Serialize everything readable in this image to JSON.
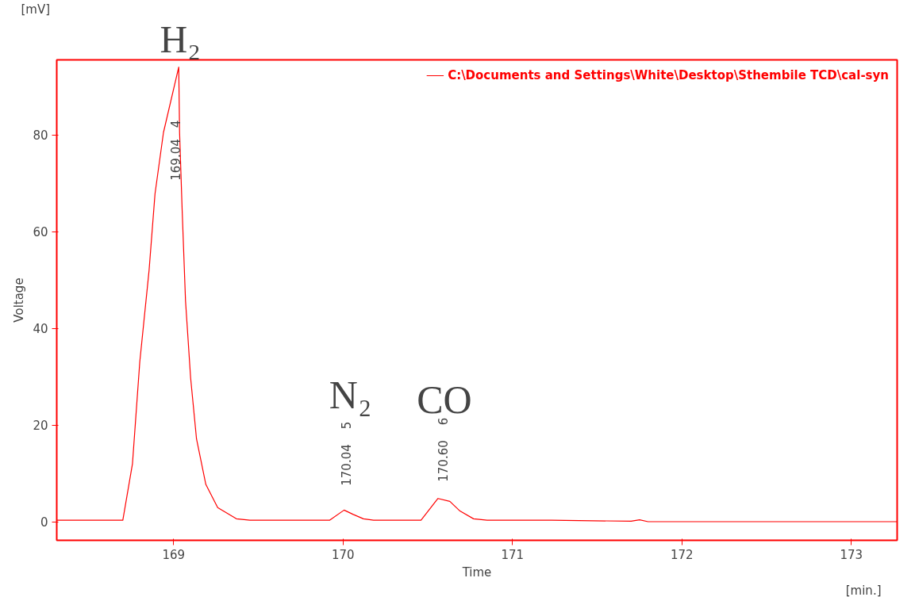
{
  "chart_data": {
    "type": "line",
    "xlabel": "Time",
    "ylabel": "Voltage",
    "xlim": [
      168.31,
      173.27
    ],
    "ylim": [
      -3.85,
      95.5
    ],
    "xticks": [
      169,
      170,
      171,
      172,
      173
    ],
    "yticks": [
      0,
      20,
      40,
      60,
      80
    ],
    "grid": false,
    "legend": "top right",
    "marker": "none",
    "line_style": "solid",
    "series": [
      {
        "name": "C:\\Documents and Settings\\White\\Desktop\\Sthembile TCD\\cal-syn",
        "color": "#ff0000",
        "x": [
          168.31,
          168.7,
          168.757,
          168.8,
          168.855,
          168.89,
          168.94,
          169.03,
          169.035,
          169.05,
          169.07,
          169.1,
          169.135,
          169.19,
          169.26,
          169.37,
          169.45,
          169.92,
          170.006,
          170.06,
          170.12,
          170.18,
          170.46,
          170.56,
          170.63,
          170.69,
          170.77,
          170.85,
          171.23,
          171.7,
          171.75,
          171.8,
          173.27
        ],
        "values": [
          0.3,
          0.3,
          12,
          33,
          52,
          67.8,
          80.5,
          94,
          80.5,
          64.6,
          45.7,
          29.8,
          17.1,
          7.7,
          2.9,
          0.6,
          0.3,
          0.3,
          2.4,
          1.5,
          0.6,
          0.3,
          0.3,
          4.8,
          4.2,
          2.2,
          0.6,
          0.3,
          0.3,
          0.1,
          0.4,
          0,
          0
        ]
      }
    ],
    "annotations": [
      {
        "text": "N₂",
        "x": 170.006,
        "y": 2.4
      },
      {
        "text": "CO",
        "x": 170.56,
        "y": 4.8
      },
      "H₂",
      "[mV]",
      "[min.]",
      "4",
      "169.04",
      "5",
      "170.04",
      "6",
      "170.60"
    ]
  }
}
